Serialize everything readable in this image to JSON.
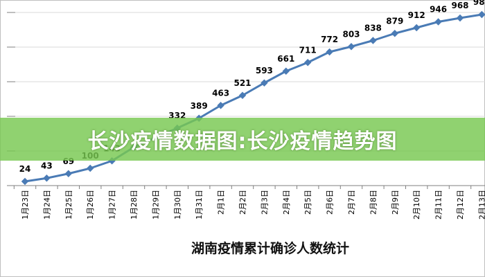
{
  "banner": {
    "text": "长沙疫情数据图:长沙疫情趋势图"
  },
  "colors": {
    "line": "#4a7bb5",
    "marker": "#4a7bb5",
    "grid": "#d9d9d9",
    "banner": "#78c850"
  },
  "chart_data": {
    "type": "line",
    "title": "湖南疫情累计确诊人数统计",
    "xlabel": "",
    "ylabel": "",
    "ylim": [
      0,
      1000
    ],
    "grid": true,
    "categories": [
      "1月23日",
      "1月24日",
      "1月25日",
      "1月26日",
      "1月27日",
      "1月28日",
      "1月29日",
      "1月30日",
      "1月31日",
      "2月1日",
      "2月2日",
      "2月3日",
      "2月4日",
      "2月5日",
      "2月6日",
      "2月7日",
      "2月8日",
      "2月9日",
      "2月10日",
      "2月11日",
      "2月12日",
      "2月13日"
    ],
    "series": [
      {
        "values": [
          24,
          43,
          69,
          100,
          143,
          221,
          277,
          332,
          389,
          463,
          521,
          593,
          661,
          711,
          772,
          803,
          838,
          879,
          912,
          946,
          968,
          988
        ],
        "labels": [
          "24",
          "43",
          "69",
          "100",
          "143",
          "",
          "",
          "332",
          "389",
          "463",
          "521",
          "593",
          "661",
          "711",
          "772",
          "803",
          "838",
          "879",
          "912",
          "946",
          "968",
          "988"
        ]
      }
    ]
  }
}
